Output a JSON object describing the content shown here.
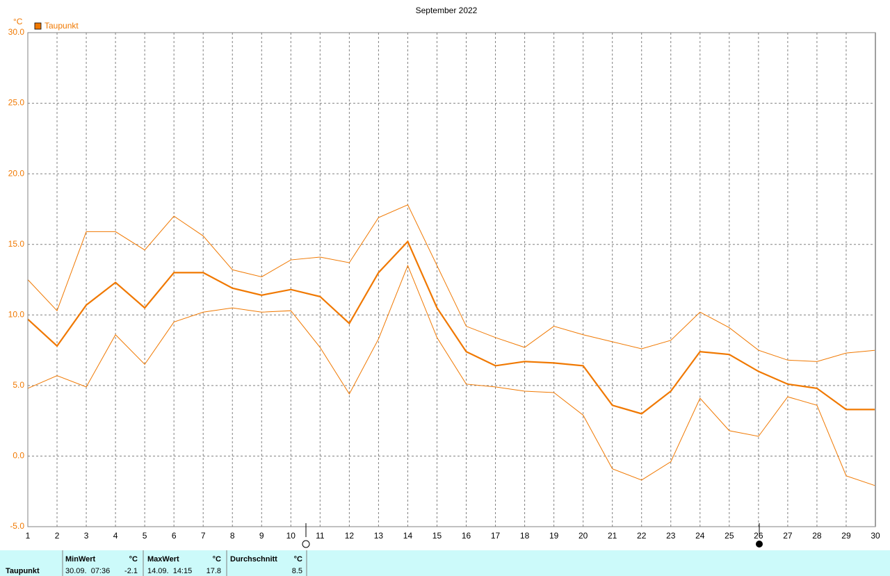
{
  "chart_data": {
    "type": "line",
    "title": "September 2022",
    "y_unit": "°C",
    "x": [
      1,
      2,
      3,
      4,
      5,
      6,
      7,
      8,
      9,
      10,
      11,
      12,
      13,
      14,
      15,
      16,
      17,
      18,
      19,
      20,
      21,
      22,
      23,
      24,
      25,
      26,
      27,
      28,
      29,
      30
    ],
    "xlim": [
      1,
      30
    ],
    "xticks": [
      1,
      2,
      3,
      4,
      5,
      6,
      7,
      8,
      9,
      10,
      11,
      12,
      13,
      14,
      15,
      16,
      17,
      18,
      19,
      20,
      21,
      22,
      23,
      24,
      25,
      26,
      27,
      28,
      29,
      30
    ],
    "ylim": [
      -5,
      30
    ],
    "yticks": [
      {
        "value": -5,
        "label": "-5.0"
      },
      {
        "value": 0,
        "label": "0.0"
      },
      {
        "value": 5,
        "label": "5.0"
      },
      {
        "value": 10,
        "label": "10.0"
      },
      {
        "value": 15,
        "label": "15.0"
      },
      {
        "value": 20,
        "label": "20.0"
      },
      {
        "value": 25,
        "label": "25.0"
      },
      {
        "value": 30,
        "label": "30.0"
      }
    ],
    "grid": true,
    "legend": "upper left",
    "series": [
      {
        "name": "Taupunkt",
        "color": "#f07800",
        "line_width": 2.2,
        "values": [
          9.7,
          7.8,
          10.7,
          12.3,
          10.5,
          13.0,
          13.0,
          11.9,
          11.4,
          11.8,
          11.3,
          9.4,
          13.0,
          15.2,
          10.5,
          7.4,
          6.4,
          6.7,
          6.6,
          6.4,
          3.6,
          3.0,
          4.6,
          7.4,
          7.2,
          6.0,
          5.1,
          4.8,
          3.3,
          3.3
        ]
      },
      {
        "color": "#f07800",
        "line_width": 1,
        "values": [
          12.5,
          10.3,
          15.9,
          15.9,
          14.6,
          17.0,
          15.6,
          13.2,
          12.7,
          13.9,
          14.1,
          13.7,
          16.9,
          17.8,
          13.5,
          9.2,
          8.4,
          7.7,
          9.2,
          8.6,
          8.1,
          7.6,
          8.2,
          10.2,
          9.1,
          7.5,
          6.8,
          6.7,
          7.3,
          7.5
        ]
      },
      {
        "color": "#f07800",
        "line_width": 1,
        "values": [
          4.8,
          5.7,
          4.9,
          8.6,
          6.5,
          9.5,
          10.2,
          10.5,
          10.2,
          10.3,
          7.7,
          4.4,
          8.3,
          13.5,
          8.4,
          5.1,
          4.9,
          4.6,
          4.5,
          2.9,
          -0.9,
          -1.7,
          -0.4,
          4.1,
          1.8,
          1.4,
          4.2,
          3.6,
          -1.4,
          -2.1
        ]
      }
    ]
  },
  "summary": {
    "row_label": "Taupunkt",
    "columns": [
      {
        "header": "MinWert",
        "unit": "°C",
        "time": "30.09.  07:36",
        "value": -2.1
      },
      {
        "header": "MaxWert",
        "unit": "°C",
        "time": "14.09.  14:15",
        "value": 17.8
      },
      {
        "header": "Durchschnitt",
        "unit": "°C",
        "value": 8.5
      }
    ]
  }
}
